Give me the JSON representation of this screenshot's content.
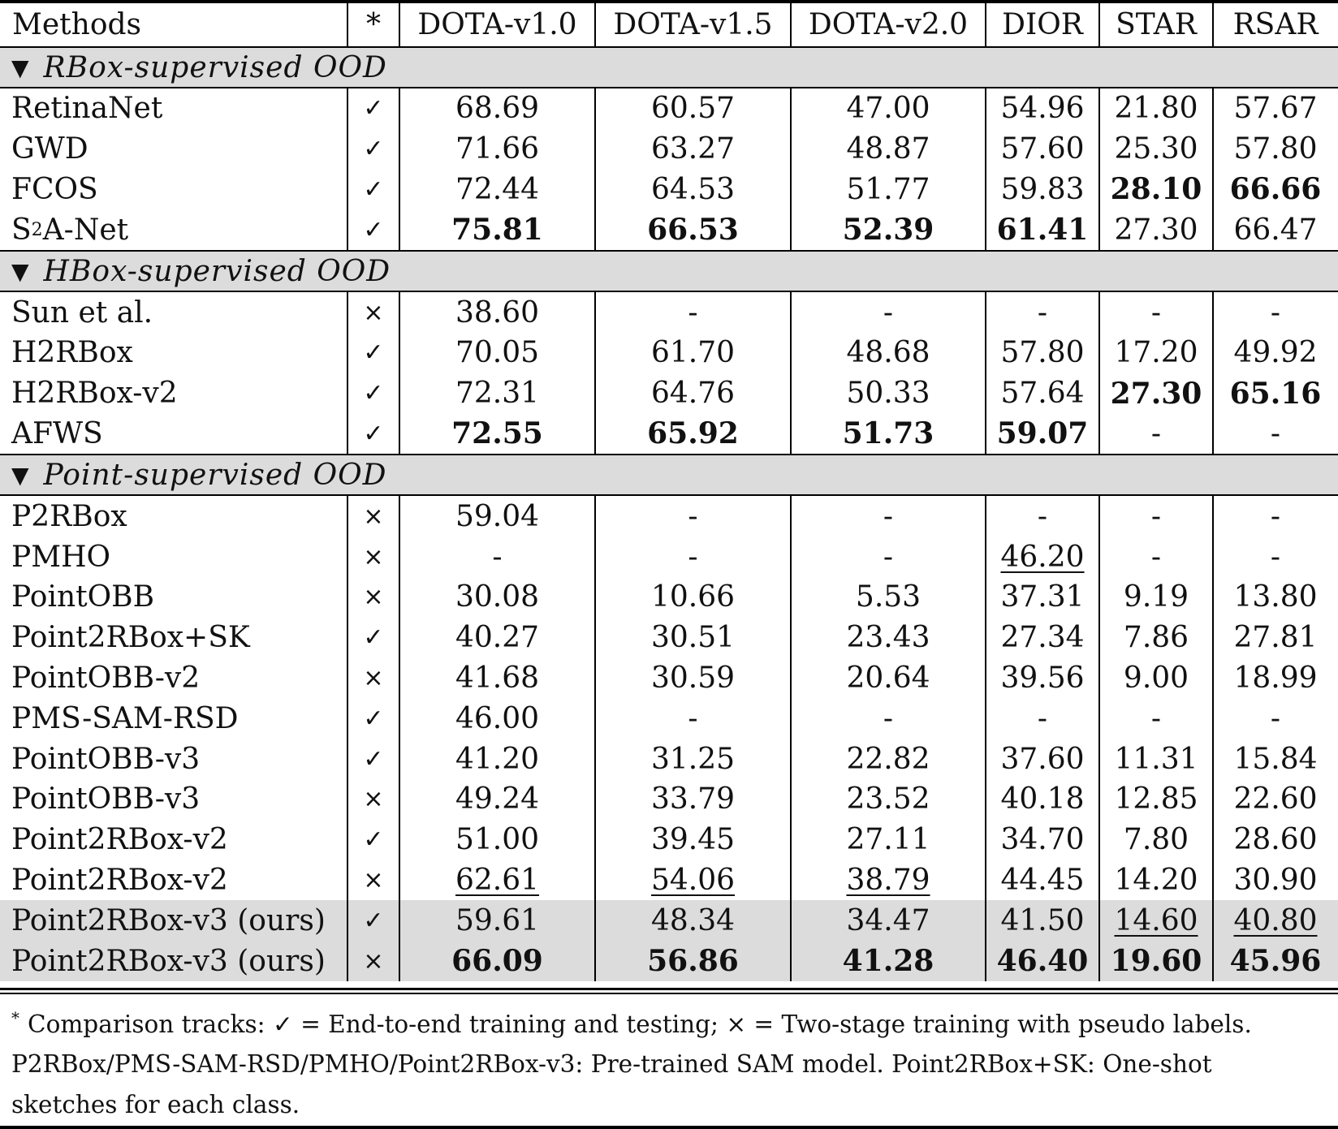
{
  "table": {
    "headers": [
      "Methods",
      "*",
      "DOTA-v1.0",
      "DOTA-v1.5",
      "DOTA-v2.0",
      "DIOR",
      "STAR",
      "RSAR"
    ],
    "sections": [
      {
        "label": "RBox-supervised OOD",
        "rows": [
          {
            "method": "RetinaNet",
            "track": "✓",
            "vals": [
              "68.69",
              "60.57",
              "47.00",
              "54.96",
              "21.80",
              "57.67"
            ],
            "bold": [],
            "under": []
          },
          {
            "method": "GWD",
            "track": "✓",
            "vals": [
              "71.66",
              "63.27",
              "48.87",
              "57.60",
              "25.30",
              "57.80"
            ],
            "bold": [],
            "under": []
          },
          {
            "method": "FCOS",
            "track": "✓",
            "vals": [
              "72.44",
              "64.53",
              "51.77",
              "59.83",
              "28.10",
              "66.66"
            ],
            "bold": [
              4,
              5
            ],
            "under": []
          },
          {
            "method": "S",
            "method_sup": "2",
            "method_rest": "A-Net",
            "track": "✓",
            "vals": [
              "75.81",
              "66.53",
              "52.39",
              "61.41",
              "27.30",
              "66.47"
            ],
            "bold": [
              0,
              1,
              2,
              3
            ],
            "under": []
          }
        ]
      },
      {
        "label": "HBox-supervised OOD",
        "rows": [
          {
            "method": "Sun et al.",
            "track": "×",
            "vals": [
              "38.60",
              "-",
              "-",
              "-",
              "-",
              "-"
            ],
            "bold": [],
            "under": []
          },
          {
            "method": "H2RBox",
            "track": "✓",
            "vals": [
              "70.05",
              "61.70",
              "48.68",
              "57.80",
              "17.20",
              "49.92"
            ],
            "bold": [],
            "under": []
          },
          {
            "method": "H2RBox-v2",
            "track": "✓",
            "vals": [
              "72.31",
              "64.76",
              "50.33",
              "57.64",
              "27.30",
              "65.16"
            ],
            "bold": [
              4,
              5
            ],
            "under": []
          },
          {
            "method": "AFWS",
            "track": "✓",
            "vals": [
              "72.55",
              "65.92",
              "51.73",
              "59.07",
              "-",
              "-"
            ],
            "bold": [
              0,
              1,
              2,
              3
            ],
            "under": []
          }
        ]
      },
      {
        "label": "Point-supervised OOD",
        "rows": [
          {
            "method": "P2RBox",
            "track": "×",
            "vals": [
              "59.04",
              "-",
              "-",
              "-",
              "-",
              "-"
            ],
            "bold": [],
            "under": []
          },
          {
            "method": "PMHO",
            "track": "×",
            "vals": [
              "-",
              "-",
              "-",
              "46.20",
              "-",
              "-"
            ],
            "bold": [],
            "under": [
              3
            ]
          },
          {
            "method": "PointOBB",
            "track": "×",
            "vals": [
              "30.08",
              "10.66",
              "5.53",
              "37.31",
              "9.19",
              "13.80"
            ],
            "bold": [],
            "under": []
          },
          {
            "method": "Point2RBox+SK",
            "track": "✓",
            "vals": [
              "40.27",
              "30.51",
              "23.43",
              "27.34",
              "7.86",
              "27.81"
            ],
            "bold": [],
            "under": []
          },
          {
            "method": "PointOBB-v2",
            "track": "×",
            "vals": [
              "41.68",
              "30.59",
              "20.64",
              "39.56",
              "9.00",
              "18.99"
            ],
            "bold": [],
            "under": []
          },
          {
            "method": "PMS-SAM-RSD",
            "track": "✓",
            "vals": [
              "46.00",
              "-",
              "-",
              "-",
              "-",
              "-"
            ],
            "bold": [],
            "under": []
          },
          {
            "method": "PointOBB-v3",
            "track": "✓",
            "vals": [
              "41.20",
              "31.25",
              "22.82",
              "37.60",
              "11.31",
              "15.84"
            ],
            "bold": [],
            "under": []
          },
          {
            "method": "PointOBB-v3",
            "track": "×",
            "vals": [
              "49.24",
              "33.79",
              "23.52",
              "40.18",
              "12.85",
              "22.60"
            ],
            "bold": [],
            "under": []
          },
          {
            "method": "Point2RBox-v2",
            "track": "✓",
            "vals": [
              "51.00",
              "39.45",
              "27.11",
              "34.70",
              "7.80",
              "28.60"
            ],
            "bold": [],
            "under": []
          },
          {
            "method": "Point2RBox-v2",
            "track": "×",
            "vals": [
              "62.61",
              "54.06",
              "38.79",
              "44.45",
              "14.20",
              "30.90"
            ],
            "bold": [],
            "under": [
              0,
              1,
              2
            ]
          },
          {
            "method": "Point2RBox-v3 (ours)",
            "track": "✓",
            "vals": [
              "59.61",
              "48.34",
              "34.47",
              "41.50",
              "14.60",
              "40.80"
            ],
            "bold": [],
            "under": [
              4,
              5
            ],
            "shade": true
          },
          {
            "method": "Point2RBox-v3 (ours)",
            "track": "×",
            "vals": [
              "66.09",
              "56.86",
              "41.28",
              "46.40",
              "19.60",
              "45.96"
            ],
            "bold": [
              0,
              1,
              2,
              3,
              4,
              5
            ],
            "under": [],
            "shade": true
          }
        ]
      }
    ]
  },
  "footnote": {
    "star": "*",
    "line1": "Comparison tracks: ✓ = End-to-end training and testing; × = Two-stage training with pseudo labels.",
    "line2": "P2RBox/PMS-SAM-RSD/PMHO/Point2RBox-v3: Pre-trained SAM model. Point2RBox+SK: One-shot",
    "line3": "sketches for each class."
  }
}
